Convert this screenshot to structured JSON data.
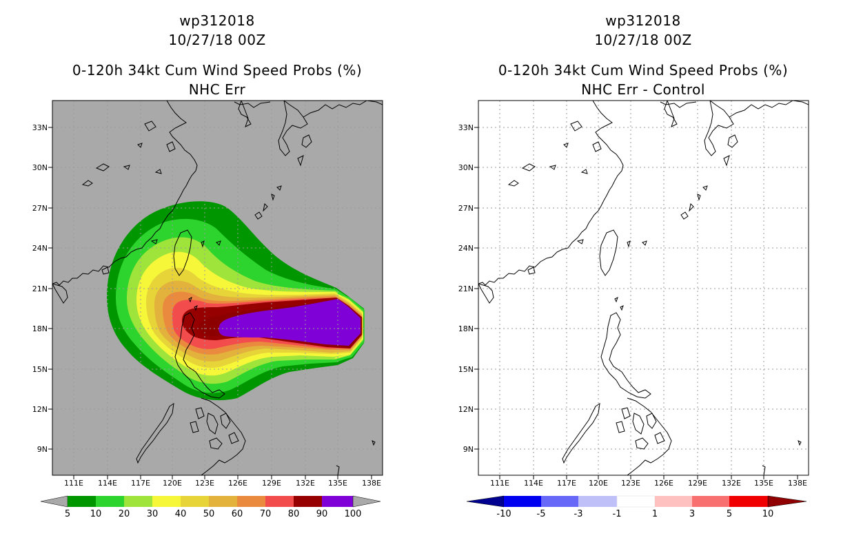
{
  "left_panel": {
    "title_line1": "wp312018",
    "title_line2": "10/27/18 00Z",
    "title_line3": "0-120h 34kt Cum Wind Speed Probs (%)",
    "title_line4": "NHC Err",
    "colorbar": {
      "labels": [
        "5",
        "10",
        "20",
        "30",
        "40",
        "50",
        "60",
        "70",
        "80",
        "90",
        "100"
      ],
      "colors": [
        "#009600",
        "#2dd42d",
        "#9fe43a",
        "#f7f73a",
        "#e6d439",
        "#e2b23c",
        "#ea8a3e",
        "#f24c4c",
        "#960000",
        "#8000d8"
      ],
      "end_color": "#a9a9a9"
    }
  },
  "right_panel": {
    "title_line1": "wp312018",
    "title_line2": "10/27/18 00Z",
    "title_line3": "0-120h 34kt Cum Wind Speed Probs (%)",
    "title_line4": "NHC Err - Control",
    "colorbar": {
      "labels": [
        "-10",
        "-5",
        "-3",
        "-1",
        "1",
        "3",
        "5",
        "10"
      ],
      "colors": [
        "#0000f0",
        "#6868f8",
        "#c0c0f8",
        "#ffffff",
        "#ffc0c0",
        "#f87070",
        "#f00000"
      ],
      "end_low": "#000090",
      "end_high": "#900000"
    }
  },
  "axes": {
    "lon_labels": [
      "111E",
      "114E",
      "117E",
      "120E",
      "123E",
      "126E",
      "129E",
      "132E",
      "135E",
      "138E"
    ],
    "lat_labels": [
      "33N",
      "30N",
      "27N",
      "24N",
      "21N",
      "18N",
      "15N",
      "12N",
      "9N"
    ]
  },
  "colors": {
    "background_map": "#a9a9a9",
    "grid": "#9a9a9a",
    "coast": "#000000"
  }
}
